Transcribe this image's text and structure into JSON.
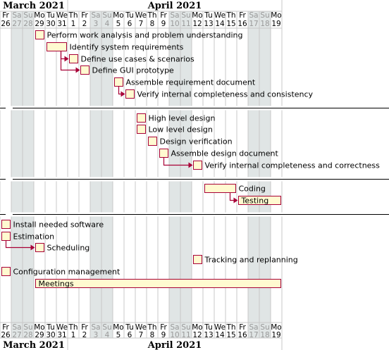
{
  "calendar": {
    "months": [
      {
        "name": "March 2021",
        "start_index": 0,
        "end_index": 5
      },
      {
        "name": "April 2021",
        "start_index": 6,
        "end_index": 24
      }
    ],
    "days": [
      {
        "wd": "Fr",
        "d": "26",
        "weekend": false
      },
      {
        "wd": "Sa",
        "d": "27",
        "weekend": true
      },
      {
        "wd": "Su",
        "d": "28",
        "weekend": true
      },
      {
        "wd": "Mo",
        "d": "29",
        "weekend": false
      },
      {
        "wd": "Tu",
        "d": "30",
        "weekend": false
      },
      {
        "wd": "We",
        "d": "31",
        "weekend": false
      },
      {
        "wd": "Th",
        "d": "1",
        "weekend": false
      },
      {
        "wd": "Fr",
        "d": "2",
        "weekend": false
      },
      {
        "wd": "Sa",
        "d": "3",
        "weekend": true
      },
      {
        "wd": "Su",
        "d": "4",
        "weekend": true
      },
      {
        "wd": "Mo",
        "d": "5",
        "weekend": false
      },
      {
        "wd": "Tu",
        "d": "6",
        "weekend": false
      },
      {
        "wd": "We",
        "d": "7",
        "weekend": false
      },
      {
        "wd": "Th",
        "d": "8",
        "weekend": false
      },
      {
        "wd": "Fr",
        "d": "9",
        "weekend": false
      },
      {
        "wd": "Sa",
        "d": "10",
        "weekend": true
      },
      {
        "wd": "Su",
        "d": "11",
        "weekend": true
      },
      {
        "wd": "Mo",
        "d": "12",
        "weekend": false
      },
      {
        "wd": "Tu",
        "d": "13",
        "weekend": false
      },
      {
        "wd": "We",
        "d": "14",
        "weekend": false
      },
      {
        "wd": "Th",
        "d": "15",
        "weekend": false
      },
      {
        "wd": "Fr",
        "d": "16",
        "weekend": false
      },
      {
        "wd": "Sa",
        "d": "17",
        "weekend": true
      },
      {
        "wd": "Su",
        "d": "18",
        "weekend": true
      },
      {
        "wd": "Mo",
        "d": "19",
        "weekend": false
      }
    ]
  },
  "tasks": [
    {
      "id": "t1",
      "name": "Perform work analysis and problem understanding",
      "start": 3,
      "end": 3,
      "row": 0
    },
    {
      "id": "t2",
      "name": "Identify system requirements",
      "start": 4,
      "end": 5,
      "row": 1
    },
    {
      "id": "t3",
      "name": "Define use cases & scenarios",
      "start": 6,
      "end": 6,
      "row": 2
    },
    {
      "id": "t4",
      "name": "Define GUI prototype",
      "start": 7,
      "end": 7,
      "row": 3
    },
    {
      "id": "t5",
      "name": "Assemble requirement document",
      "start": 10,
      "end": 10,
      "row": 4
    },
    {
      "id": "t6",
      "name": "Verify internal completeness and consistency",
      "start": 11,
      "end": 11,
      "row": 5
    },
    {
      "id": "t7",
      "name": "High level design",
      "start": 12,
      "end": 12,
      "row": 7
    },
    {
      "id": "t8",
      "name": "Low level design",
      "start": 12,
      "end": 12,
      "row": 8
    },
    {
      "id": "t9",
      "name": "Design verification",
      "start": 13,
      "end": 13,
      "row": 9
    },
    {
      "id": "t10",
      "name": "Assemble design document",
      "start": 14,
      "end": 14,
      "row": 10
    },
    {
      "id": "t11",
      "name": "Verify internal completeness and correctness",
      "start": 17,
      "end": 17,
      "row": 11
    },
    {
      "id": "t12",
      "name": "Coding",
      "start": 18,
      "end": 20,
      "row": 13
    },
    {
      "id": "t13",
      "name": "Testing",
      "start": 21,
      "end": 24,
      "row": 14,
      "label_inside": true
    },
    {
      "id": "t14",
      "name": "Install needed software",
      "start": 0,
      "end": 0,
      "row": 16
    },
    {
      "id": "t15",
      "name": "Estimation",
      "start": 0,
      "end": 0,
      "row": 17
    },
    {
      "id": "t16",
      "name": "Scheduling",
      "start": 3,
      "end": 3,
      "row": 18
    },
    {
      "id": "t17",
      "name": "Tracking and replanning",
      "start": 17,
      "end": 17,
      "row": 19
    },
    {
      "id": "t18",
      "name": "Configuration management",
      "start": 0,
      "end": 0,
      "row": 20
    },
    {
      "id": "t19",
      "name": "Meetings",
      "start": 3,
      "end": 24,
      "row": 21,
      "label_inside": true
    }
  ],
  "dependencies": [
    {
      "from": "t2",
      "to": "t3"
    },
    {
      "from": "t2",
      "to": "t4"
    },
    {
      "from": "t5",
      "to": "t6"
    },
    {
      "from": "t10",
      "to": "t11"
    },
    {
      "from": "t12",
      "to": "t13"
    },
    {
      "from": "t15",
      "to": "t16"
    }
  ],
  "separators": [
    6,
    12,
    15
  ],
  "colors": {
    "weekend_shade": "#e0e5e5",
    "task_fill": "#fffad0",
    "task_border": "#a80036",
    "arrow": "#a80036",
    "grid_line": "#c8c8c8",
    "separator": "#000000",
    "weekend_text": "#999999",
    "text": "#000000"
  }
}
